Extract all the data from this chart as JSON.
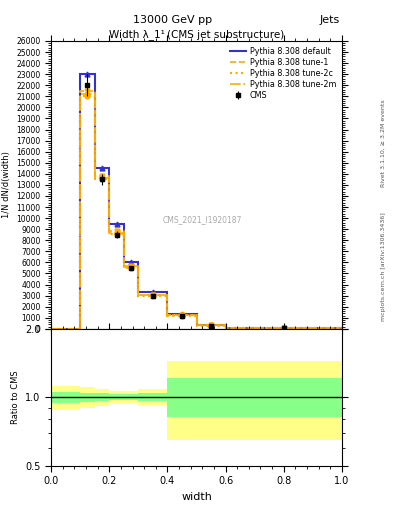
{
  "title_top": "13000 GeV pp",
  "title_right": "Jets",
  "plot_title": "Width λ_1¹ (CMS jet substructure)",
  "watermark": "CMS_2021_I1920187",
  "right_label_top": "Rivet 3.1.10, ≥ 3.2M events",
  "right_label_bottom": "mcplots.cern.ch [arXiv:1306.3436]",
  "xlabel": "width",
  "ylabel_main": "1/N dN/d(width)",
  "ylabel_ratio": "Ratio to CMS",
  "xlim": [
    0,
    1.0
  ],
  "ylim_main": [
    0,
    26000
  ],
  "ylim_ratio": [
    0.5,
    2.0
  ],
  "x_bins_edges": [
    0.0,
    0.1,
    0.15,
    0.2,
    0.25,
    0.3,
    0.4,
    0.5,
    0.6,
    1.0
  ],
  "cms_data": [
    0,
    22000,
    13500,
    8500,
    5500,
    3000,
    1200,
    300,
    80
  ],
  "cms_errors": [
    0,
    1000,
    500,
    300,
    200,
    150,
    80,
    30,
    20
  ],
  "pythia_default": [
    0,
    23000,
    14500,
    9500,
    6000,
    3300,
    1350,
    350,
    100
  ],
  "pythia_tune1": [
    0,
    21500,
    13800,
    8800,
    5700,
    3100,
    1250,
    320,
    90
  ],
  "pythia_tune2c": [
    0,
    21000,
    13500,
    8600,
    5500,
    3000,
    1200,
    300,
    80
  ],
  "pythia_tune2m": [
    0,
    21200,
    13600,
    8700,
    5600,
    3050,
    1220,
    310,
    85
  ],
  "ratio_yellow_low": [
    0.88,
    0.9,
    0.92,
    0.94,
    0.94,
    0.93,
    0.65,
    0.65,
    0.65
  ],
  "ratio_yellow_high": [
    1.12,
    1.11,
    1.09,
    1.07,
    1.07,
    1.09,
    1.45,
    1.45,
    1.45
  ],
  "ratio_green_low": [
    0.94,
    0.95,
    0.96,
    0.97,
    0.97,
    0.965,
    0.82,
    0.82,
    0.82
  ],
  "ratio_green_high": [
    1.06,
    1.05,
    1.04,
    1.035,
    1.035,
    1.04,
    1.22,
    1.22,
    1.22
  ],
  "color_default": "#3333cc",
  "color_tune1": "#ffaa00",
  "color_tune2c": "#ffaa00",
  "color_tune2m": "#ffaa00",
  "color_cms": "#000000",
  "color_yellow": "#ffff88",
  "color_green": "#88ff88",
  "bg_color": "#ffffff"
}
